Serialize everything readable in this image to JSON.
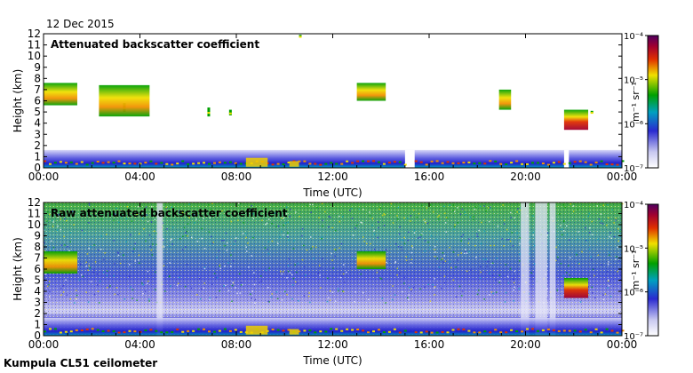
{
  "header": {
    "date": "12 Dec 2015"
  },
  "footer": {
    "site": "Kumpula CL51 ceilometer"
  },
  "chart_data": [
    {
      "type": "heatmap",
      "title": "Attenuated backscatter coefficient",
      "xlabel": "Time (UTC)",
      "ylabel": "Height (km)",
      "xticks": [
        "00:00",
        "04:00",
        "08:00",
        "12:00",
        "16:00",
        "20:00",
        "00:00"
      ],
      "yticks": [
        "0",
        "1",
        "2",
        "3",
        "4",
        "5",
        "6",
        "7",
        "8",
        "9",
        "10",
        "11",
        "12"
      ],
      "xlim": [
        0,
        24
      ],
      "ylim": [
        0,
        12
      ],
      "colorbar": {
        "label_html": "m⁻¹ sr⁻¹",
        "scale": "log",
        "ticks": [
          "10⁻⁷",
          "10⁻⁶",
          "10⁻⁵",
          "10⁻⁴"
        ],
        "range": [
          1e-07,
          0.0001
        ]
      },
      "features": [
        {
          "desc": "boundary layer",
          "t": [
            0,
            24
          ],
          "z": [
            0,
            1.6
          ],
          "level": "1e-6.5"
        },
        {
          "desc": "cloud",
          "t": [
            0,
            1.4
          ],
          "z": [
            5.6,
            7.6
          ],
          "level": "1e-5"
        },
        {
          "desc": "cloud",
          "t": [
            2.3,
            4.4
          ],
          "z": [
            4.6,
            7.4
          ],
          "level": "1e-5.5"
        },
        {
          "desc": "cloud",
          "t": [
            13.0,
            14.2
          ],
          "z": [
            6.0,
            7.6
          ],
          "level": "1e-5.2"
        },
        {
          "desc": "cloud",
          "t": [
            18.9,
            19.4
          ],
          "z": [
            5.2,
            7.0
          ],
          "level": "1e-5.3"
        },
        {
          "desc": "cloud",
          "t": [
            21.6,
            22.6
          ],
          "z": [
            3.4,
            5.2
          ],
          "level": "1e-4.3"
        }
      ]
    },
    {
      "type": "heatmap",
      "title": "Raw attenuated backscatter coefficient",
      "xlabel": "Time (UTC)",
      "ylabel": "Height (km)",
      "xticks": [
        "00:00",
        "04:00",
        "08:00",
        "12:00",
        "16:00",
        "20:00",
        "00:00"
      ],
      "yticks": [
        "0",
        "1",
        "2",
        "3",
        "4",
        "5",
        "6",
        "7",
        "8",
        "9",
        "10",
        "11",
        "12"
      ],
      "xlim": [
        0,
        24
      ],
      "ylim": [
        0,
        12
      ],
      "colorbar": {
        "label_html": "m⁻¹ sr⁻¹",
        "scale": "log",
        "ticks": [
          "10⁻⁷",
          "10⁻⁶",
          "10⁻⁵",
          "10⁻⁴"
        ],
        "range": [
          1e-07,
          0.0001
        ]
      },
      "features": [
        {
          "desc": "noise background",
          "t": [
            0,
            24
          ],
          "z": [
            0,
            12
          ],
          "level": "1e-6"
        },
        {
          "desc": "cloud",
          "t": [
            0,
            1.4
          ],
          "z": [
            5.6,
            7.6
          ],
          "level": "1e-5"
        },
        {
          "desc": "cloud",
          "t": [
            13.0,
            14.2
          ],
          "z": [
            6.0,
            7.6
          ],
          "level": "1e-5.2"
        },
        {
          "desc": "cloud",
          "t": [
            21.6,
            22.6
          ],
          "z": [
            3.4,
            5.2
          ],
          "level": "1e-4.3"
        }
      ]
    }
  ]
}
